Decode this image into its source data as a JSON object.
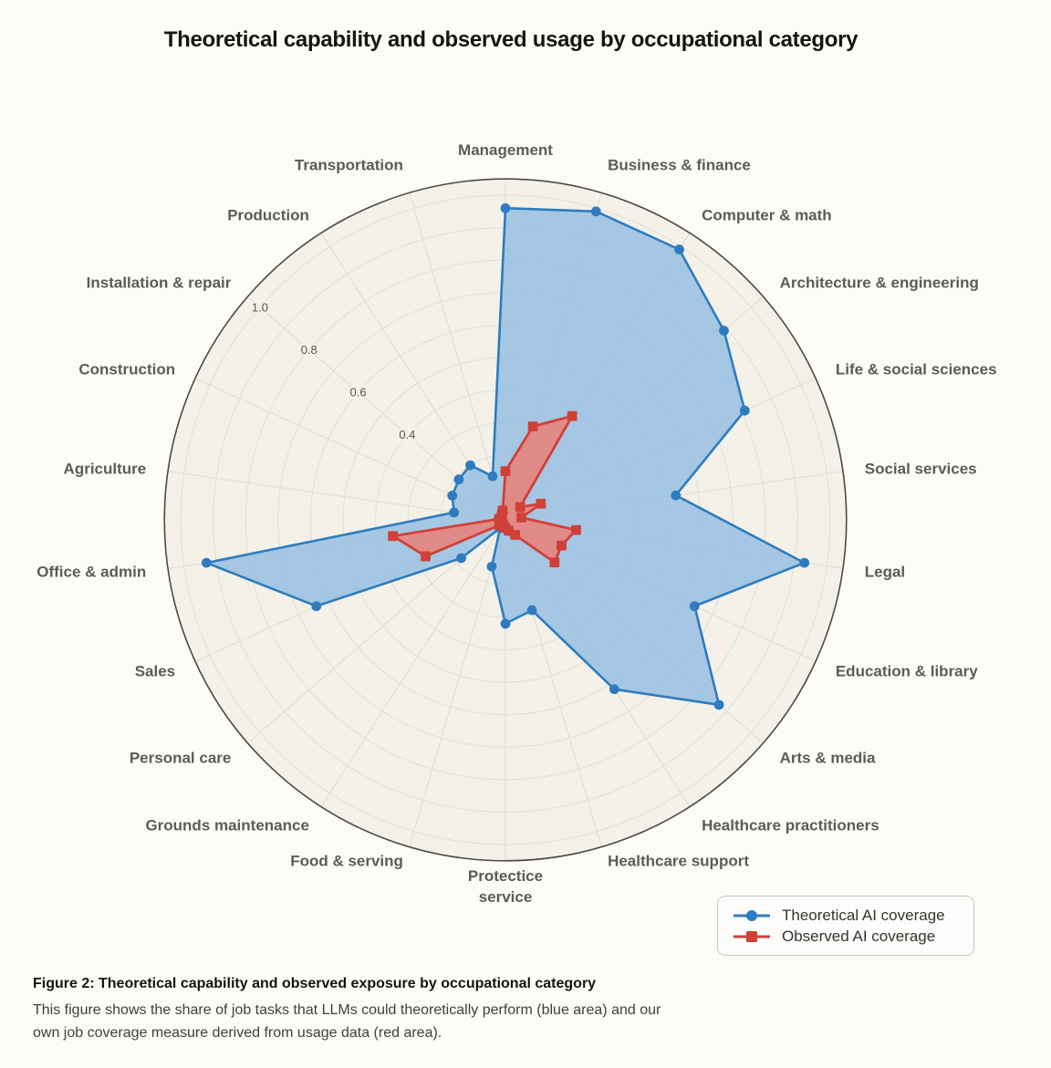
{
  "page": {
    "title": "Theoretical capability and observed usage by occupational category",
    "caption_title": "Figure 2: Theoretical capability and observed exposure by occupational category",
    "caption_body": "This figure shows the share of job tasks that LLMs could theoretically perform (blue area) and our own job coverage measure derived from usage data (red area)."
  },
  "legend": {
    "items": [
      {
        "label": "Theoretical AI coverage",
        "marker": "circle",
        "color": "#2E7CBF"
      },
      {
        "label": "Observed AI coverage",
        "marker": "square",
        "color": "#D04038"
      }
    ]
  },
  "chart_data": {
    "type": "radar",
    "title": "Theoretical capability and observed usage by occupational category",
    "radial_range": [
      0,
      1.05
    ],
    "radial_ticks": [
      0.4,
      0.6,
      0.8,
      1.0
    ],
    "grid": true,
    "legend_position": "bottom-right",
    "categories": [
      "Management",
      "Business & finance",
      "Computer & math",
      "Architecture & engineering",
      "Life & social sciences",
      "Social services",
      "Legal",
      "Education & library",
      "Arts & media",
      "Healthcare practitioners",
      "Healthcare support",
      "Protectice\nservice",
      "Food & serving",
      "Grounds maintenance",
      "Personal care",
      "Sales",
      "Office & admin",
      "Agriculture",
      "Construction",
      "Installation & repair",
      "Production",
      "Transportation"
    ],
    "series": [
      {
        "name": "Theoretical AI coverage",
        "marker": "circle",
        "color": "#2E7CBF",
        "fill": "rgba(151,191,226,0.85)",
        "values": [
          0.96,
          0.99,
          0.99,
          0.89,
          0.81,
          0.53,
          0.93,
          0.64,
          0.87,
          0.62,
          0.29,
          0.32,
          0.15,
          0.03,
          0.18,
          0.64,
          0.93,
          0.16,
          0.18,
          0.19,
          0.2,
          0.14
        ]
      },
      {
        "name": "Observed AI coverage",
        "marker": "square",
        "color": "#D04038",
        "fill": "rgba(240,124,114,0.8)",
        "values": [
          0.15,
          0.3,
          0.38,
          0.06,
          0.12,
          0.05,
          0.22,
          0.19,
          0.2,
          0.055,
          0.035,
          0.025,
          0.02,
          0.015,
          0.025,
          0.27,
          0.35,
          0.02,
          0.015,
          0.015,
          0.02,
          0.03
        ]
      }
    ],
    "colors": {
      "page_bg": "#FDFCF8",
      "polar_bg": "#F4F1E9",
      "grid_ring": "#E2DFD5",
      "grid_spoke": "#DFDCD2",
      "outer_circle": "#4B4A45",
      "category_label": "#5c5b55",
      "tick_label": "#56554f"
    }
  }
}
